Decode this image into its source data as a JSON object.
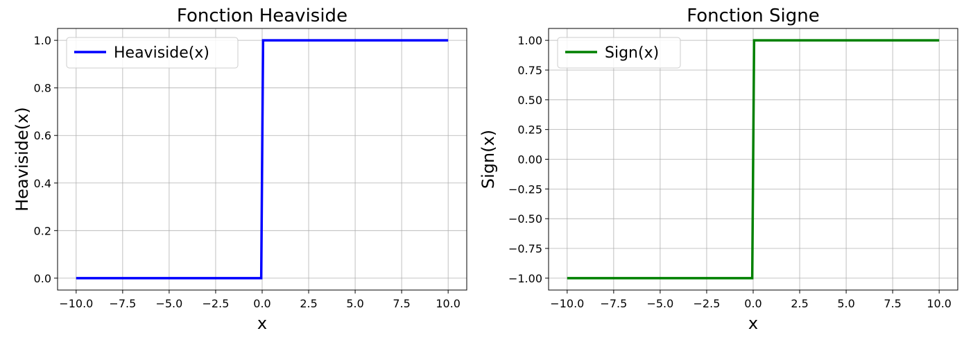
{
  "chart_data": [
    {
      "type": "line",
      "title": "Fonction Heaviside",
      "xlabel": "x",
      "ylabel": "Heaviside(x)",
      "xlim": [
        -11,
        11
      ],
      "ylim": [
        -0.05,
        1.05
      ],
      "xticks": [
        -10,
        -7.5,
        -5,
        -2.5,
        0,
        2.5,
        5,
        7.5,
        10
      ],
      "xtick_labels": [
        "−10.0",
        "−7.5",
        "−5.0",
        "−2.5",
        "0.0",
        "2.5",
        "5.0",
        "7.5",
        "10.0"
      ],
      "yticks": [
        0,
        0.2,
        0.4,
        0.6,
        0.8,
        1.0
      ],
      "ytick_labels": [
        "0.0",
        "0.2",
        "0.4",
        "0.6",
        "0.8",
        "1.0"
      ],
      "grid": true,
      "legend_position": "top-left",
      "series": [
        {
          "name": "Heaviside(x)",
          "color": "#0000ff",
          "x": [
            -10,
            -0.05,
            0.05,
            10
          ],
          "y": [
            0,
            0,
            1,
            1
          ]
        }
      ]
    },
    {
      "type": "line",
      "title": "Fonction Signe",
      "xlabel": "x",
      "ylabel": "Sign(x)",
      "xlim": [
        -11,
        11
      ],
      "ylim": [
        -1.1,
        1.1
      ],
      "xticks": [
        -10,
        -7.5,
        -5,
        -2.5,
        0,
        2.5,
        5,
        7.5,
        10
      ],
      "xtick_labels": [
        "−10.0",
        "−7.5",
        "−5.0",
        "−2.5",
        "0.0",
        "2.5",
        "5.0",
        "7.5",
        "10.0"
      ],
      "yticks": [
        -1,
        -0.75,
        -0.5,
        -0.25,
        0,
        0.25,
        0.5,
        0.75,
        1
      ],
      "ytick_labels": [
        "−1.00",
        "−0.75",
        "−0.50",
        "−0.25",
        "0.00",
        "0.25",
        "0.50",
        "0.75",
        "1.00"
      ],
      "grid": true,
      "legend_position": "top-left",
      "series": [
        {
          "name": "Sign(x)",
          "color": "#008000",
          "x": [
            -10,
            -0.05,
            0.05,
            10
          ],
          "y": [
            -1,
            -1,
            1,
            1
          ]
        }
      ]
    }
  ]
}
